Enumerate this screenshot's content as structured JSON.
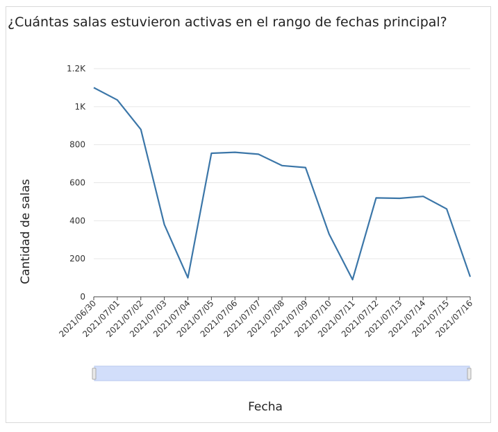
{
  "title": "¿Cuántas salas estuvieron activas en el rango de fechas principal?",
  "colors": {
    "line": "#3b76a8",
    "grid": "#e6e6e6",
    "slider_fill": "#d2defa",
    "slider_border": "#b8c8ef",
    "handle": "#aaaaaa"
  },
  "chart_data": {
    "type": "line",
    "xlabel": "Fecha",
    "ylabel": "Cantidad de salas",
    "ylim": [
      0,
      1200
    ],
    "yticks": [
      {
        "value": 0,
        "label": "0"
      },
      {
        "value": 200,
        "label": "200"
      },
      {
        "value": 400,
        "label": "400"
      },
      {
        "value": 600,
        "label": "600"
      },
      {
        "value": 800,
        "label": "800"
      },
      {
        "value": 1000,
        "label": "1K"
      },
      {
        "value": 1200,
        "label": "1.2K"
      }
    ],
    "categories": [
      "2021/06/30",
      "2021/07/01",
      "2021/07/02",
      "2021/07/03",
      "2021/07/04",
      "2021/07/05",
      "2021/07/06",
      "2021/07/07",
      "2021/07/08",
      "2021/07/09",
      "2021/07/10",
      "2021/07/11",
      "2021/07/12",
      "2021/07/13",
      "2021/07/14",
      "2021/07/15",
      "2021/07/16"
    ],
    "series": [
      {
        "values": [
          1100,
          1035,
          880,
          380,
          100,
          755,
          760,
          750,
          690,
          680,
          330,
          90,
          520,
          518,
          528,
          462,
          105
        ]
      }
    ],
    "grid": true
  }
}
